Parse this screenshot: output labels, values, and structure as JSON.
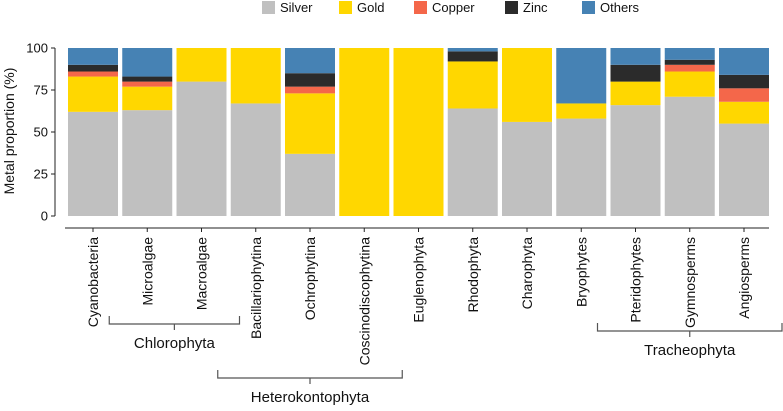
{
  "chart_data": {
    "type": "bar",
    "stacked": true,
    "ylabel": "Metal proportion (%)",
    "xlabel": "",
    "ylim": [
      0,
      100
    ],
    "yticks": [
      0,
      25,
      50,
      75,
      100
    ],
    "grid": false,
    "legend_position": "top-center",
    "categories": [
      "Cyanobacteria",
      "Microalgae",
      "Macroalgae",
      "Bacillariophytina",
      "Ochrophytina",
      "Coscinodiscophytina",
      "Euglenophyta",
      "Rhodophyta",
      "Charophyta",
      "Bryophytes",
      "Pteridophytes",
      "Gymnosperms",
      "Angiosperms"
    ],
    "series": [
      {
        "name": "Silver",
        "color": "#c0c0c0",
        "values": [
          62,
          63,
          80,
          67,
          37,
          0,
          0,
          64,
          56,
          58,
          66,
          71,
          55
        ]
      },
      {
        "name": "Gold",
        "color": "#ffd700",
        "values": [
          21,
          14,
          20,
          33,
          36,
          100,
          100,
          28,
          44,
          9,
          14,
          15,
          13
        ]
      },
      {
        "name": "Copper",
        "color": "#f4674a",
        "values": [
          3,
          3,
          0,
          0,
          4,
          0,
          0,
          0,
          0,
          0,
          0,
          4,
          8
        ]
      },
      {
        "name": "Zinc",
        "color": "#2b2b2b",
        "values": [
          4,
          3,
          0,
          0,
          8,
          0,
          0,
          6,
          0,
          0,
          10,
          3,
          8
        ]
      },
      {
        "name": "Others",
        "color": "#4682b4",
        "values": [
          10,
          17,
          0,
          0,
          15,
          0,
          0,
          2,
          0,
          33,
          10,
          7,
          16
        ]
      }
    ],
    "groups": [
      {
        "label": "Chlorophyta",
        "from": "Microalgae",
        "to": "Macroalgae"
      },
      {
        "label": "Heterokontophyta",
        "from": "Bacillariophytina",
        "to": "Coscinodiscophytina"
      },
      {
        "label": "Tracheophyta",
        "from": "Pteridophytes",
        "to": "Angiosperms"
      }
    ]
  }
}
